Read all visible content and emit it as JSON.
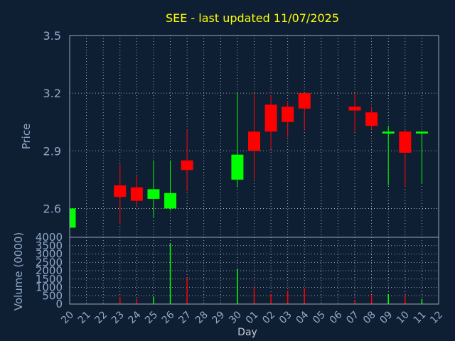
{
  "chart_data": {
    "type": "candlestick",
    "title": "SEE - last updated 11/07/2025",
    "price_panel": {
      "ylabel": "Price",
      "ylim": [
        2.45,
        3.5
      ],
      "yticks": [
        "2.6",
        "2.9",
        "3.2",
        "3.5"
      ]
    },
    "volume_panel": {
      "ylabel": "Volume (0000)",
      "ylim": [
        0,
        4000
      ],
      "yticks": [
        "0",
        "500",
        "1000",
        "1500",
        "2000",
        "2500",
        "3000",
        "3500",
        "4000"
      ]
    },
    "xlabel": "Day",
    "xticks": [
      "20",
      "21",
      "22",
      "23",
      "24",
      "25",
      "26",
      "27",
      "28",
      "29",
      "30",
      "01",
      "02",
      "03",
      "04",
      "05",
      "06",
      "07",
      "08",
      "09",
      "10",
      "11",
      "12"
    ],
    "colors": {
      "up": "#00ff00",
      "down": "#ff0000",
      "title": "#ffff00",
      "axis_text": "#8fa8c8",
      "grid": "#c8c8c8"
    },
    "candles": [
      {
        "day": "20",
        "open": 2.5,
        "high": 2.6,
        "low": 2.5,
        "close": 2.6,
        "volume": 0
      },
      {
        "day": "23",
        "open": 2.72,
        "high": 2.83,
        "low": 2.52,
        "close": 2.66,
        "volume": 420
      },
      {
        "day": "24",
        "open": 2.71,
        "high": 2.77,
        "low": 2.61,
        "close": 2.64,
        "volume": 320
      },
      {
        "day": "25",
        "open": 2.65,
        "high": 2.85,
        "low": 2.55,
        "close": 2.7,
        "volume": 450
      },
      {
        "day": "26",
        "open": 2.6,
        "high": 2.85,
        "low": 2.59,
        "close": 2.68,
        "volume": 3650
      },
      {
        "day": "27",
        "open": 2.85,
        "high": 3.01,
        "low": 2.69,
        "close": 2.8,
        "volume": 1600
      },
      {
        "day": "30",
        "open": 2.75,
        "high": 3.2,
        "low": 2.71,
        "close": 2.88,
        "volume": 2100
      },
      {
        "day": "01",
        "open": 3.0,
        "high": 3.2,
        "low": 2.75,
        "close": 2.9,
        "volume": 1000
      },
      {
        "day": "02",
        "open": 3.14,
        "high": 3.19,
        "low": 2.91,
        "close": 3.0,
        "volume": 600
      },
      {
        "day": "03",
        "open": 3.13,
        "high": 3.16,
        "low": 2.97,
        "close": 3.05,
        "volume": 800
      },
      {
        "day": "04",
        "open": 3.2,
        "high": 3.2,
        "low": 3.01,
        "close": 3.12,
        "volume": 950
      },
      {
        "day": "07",
        "open": 3.13,
        "high": 3.2,
        "low": 3.0,
        "close": 3.11,
        "volume": 250
      },
      {
        "day": "08",
        "open": 3.1,
        "high": 3.13,
        "low": 3.01,
        "close": 3.03,
        "volume": 550
      },
      {
        "day": "09",
        "open": 2.99,
        "high": 3.03,
        "low": 2.72,
        "close": 3.0,
        "volume": 600
      },
      {
        "day": "10",
        "open": 3.0,
        "high": 3.01,
        "low": 2.71,
        "close": 2.89,
        "volume": 500
      },
      {
        "day": "11",
        "open": 2.99,
        "high": 3.0,
        "low": 2.73,
        "close": 3.0,
        "volume": 300
      }
    ]
  }
}
